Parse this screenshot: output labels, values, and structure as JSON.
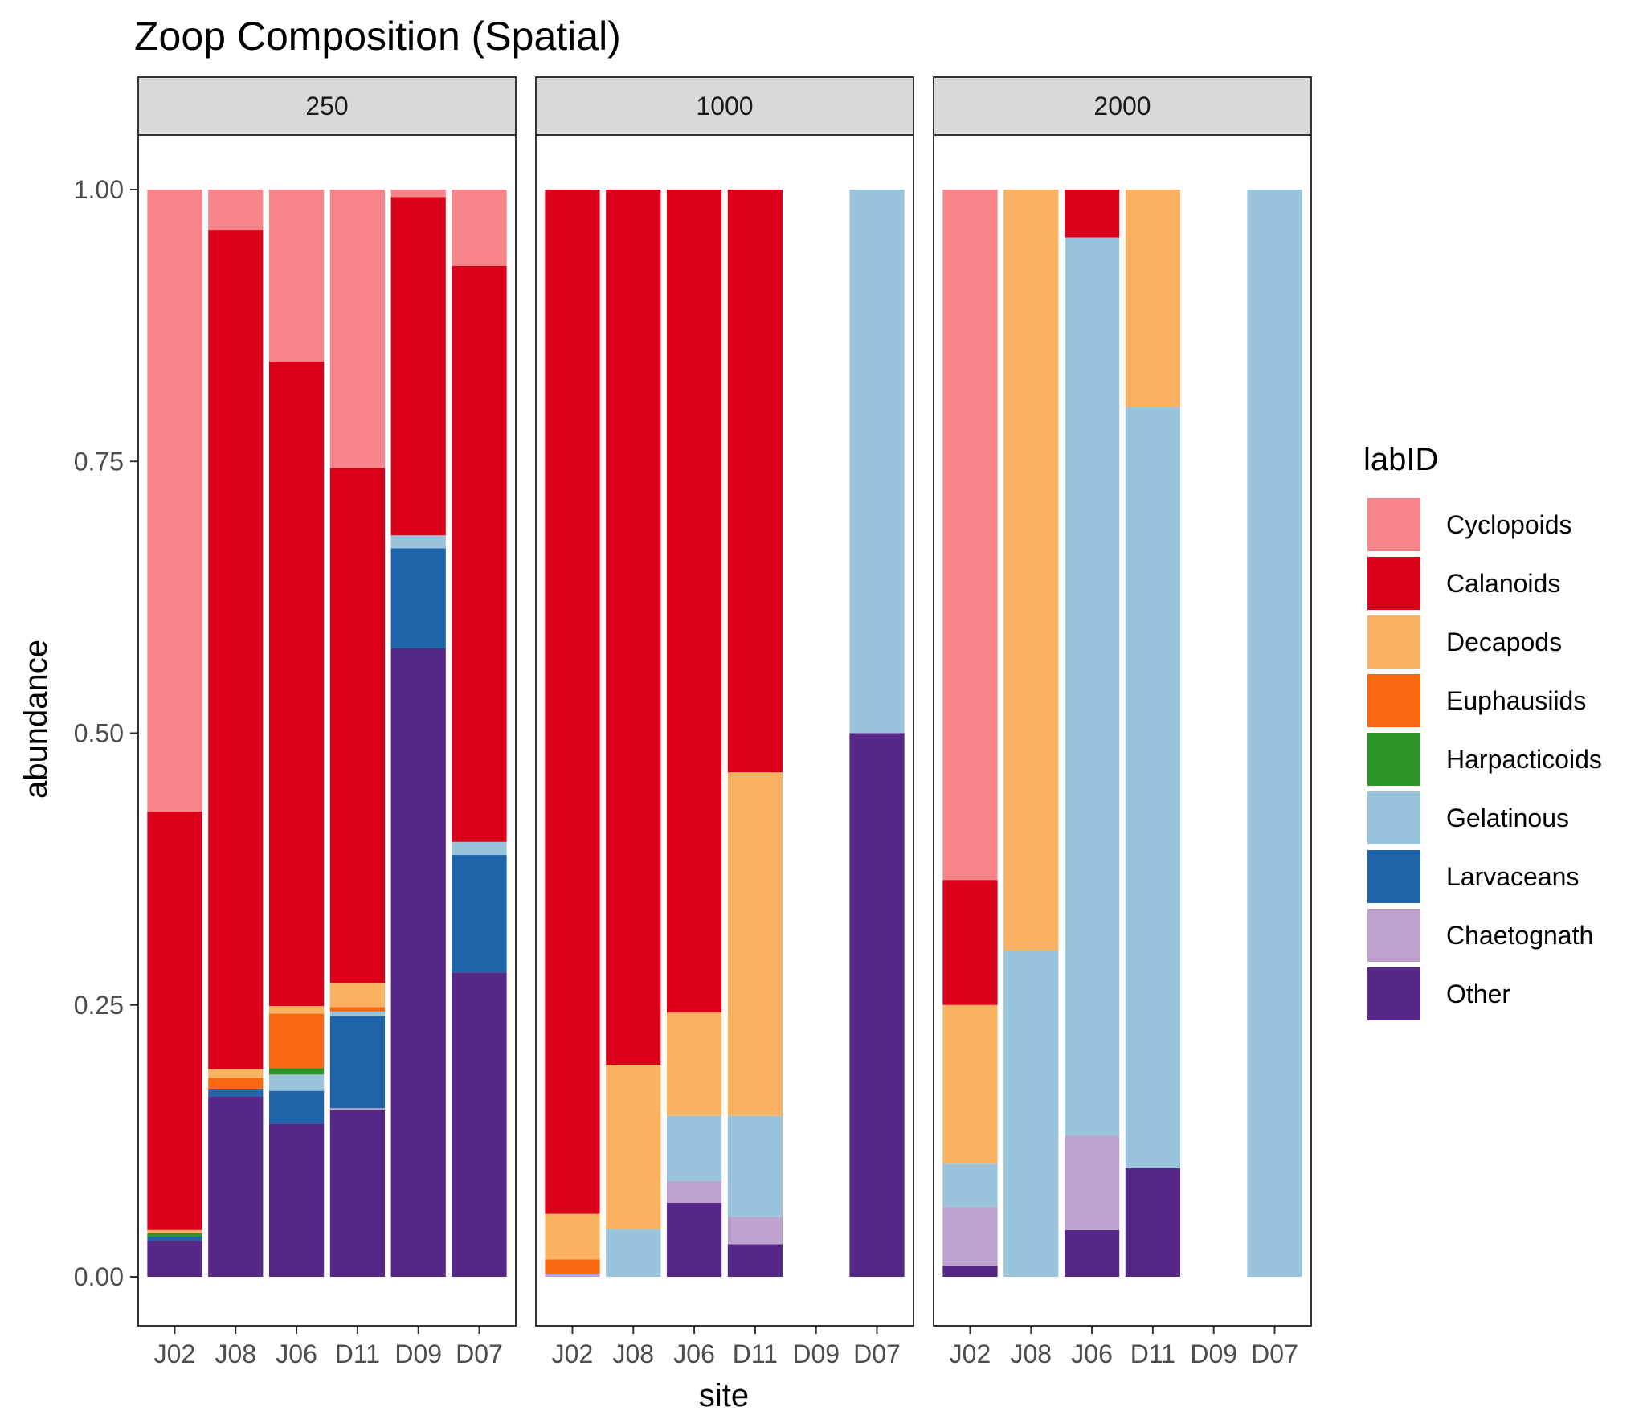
{
  "chart_data": {
    "type": "bar",
    "stacked": true,
    "title": "Zoop Composition (Spatial)",
    "xlabel": "site",
    "ylabel": "abundance",
    "ylim": [
      0,
      1
    ],
    "yticks": [
      "0.00",
      "0.25",
      "0.50",
      "0.75",
      "1.00"
    ],
    "categories": [
      "J02",
      "J08",
      "J06",
      "D11",
      "D09",
      "D07"
    ],
    "facets": [
      "250",
      "1000",
      "2000"
    ],
    "legend": {
      "title": "labID",
      "position": "right",
      "entries": [
        {
          "name": "Cyclopoids",
          "color": "#F8858A"
        },
        {
          "name": "Calanoids",
          "color": "#DA0019"
        },
        {
          "name": "Decapods",
          "color": "#F8B261"
        },
        {
          "name": "Euphausiids",
          "color": "#FA6711"
        },
        {
          "name": "Harpacticoids",
          "color": "#2E9326"
        },
        {
          "name": "Gelatinous",
          "color": "#9AC4DC"
        },
        {
          "name": "Larvaceans",
          "color": "#1F64A8"
        },
        {
          "name": "Chaetognath",
          "color": "#BDA2CE"
        },
        {
          "name": "Other",
          "color": "#562988"
        }
      ]
    },
    "stack_order_bottom_to_top": [
      "Other",
      "Chaetognath",
      "Larvaceans",
      "Gelatinous",
      "Harpacticoids",
      "Euphausiids",
      "Decapods",
      "Calanoids",
      "Cyclopoids"
    ],
    "panels": [
      {
        "facet": "250",
        "bars": {
          "J02": {
            "Other": 0.033,
            "Larvaceans": 0.004,
            "Harpacticoids": 0.003,
            "Decapods": 0.003,
            "Calanoids": 0.385,
            "Cyclopoids": 0.572
          },
          "J08": {
            "Other": 0.166,
            "Larvaceans": 0.007,
            "Euphausiids": 0.01,
            "Decapods": 0.008,
            "Calanoids": 0.772,
            "Cyclopoids": 0.037
          },
          "J06": {
            "Other": 0.141,
            "Larvaceans": 0.03,
            "Gelatinous": 0.015,
            "Harpacticoids": 0.006,
            "Euphausiids": 0.05,
            "Decapods": 0.007,
            "Calanoids": 0.593,
            "Cyclopoids": 0.158
          },
          "D11": {
            "Other": 0.153,
            "Chaetognath": 0.002,
            "Larvaceans": 0.085,
            "Gelatinous": 0.004,
            "Euphausiids": 0.004,
            "Decapods": 0.022,
            "Calanoids": 0.474,
            "Cyclopoids": 0.256
          },
          "D09": {
            "Other": 0.578,
            "Larvaceans": 0.092,
            "Gelatinous": 0.012,
            "Calanoids": 0.311,
            "Cyclopoids": 0.007
          },
          "D07": {
            "Other": 0.28,
            "Larvaceans": 0.108,
            "Gelatinous": 0.012,
            "Calanoids": 0.53,
            "Cyclopoids": 0.07
          }
        }
      },
      {
        "facet": "1000",
        "bars": {
          "J02": {
            "Chaetognath": 0.003,
            "Euphausiids": 0.013,
            "Decapods": 0.042,
            "Calanoids": 0.942
          },
          "J08": {
            "Gelatinous": 0.044,
            "Decapods": 0.151,
            "Calanoids": 0.805
          },
          "J06": {
            "Other": 0.068,
            "Chaetognath": 0.02,
            "Gelatinous": 0.06,
            "Decapods": 0.095,
            "Calanoids": 0.757
          },
          "D11": {
            "Other": 0.03,
            "Chaetognath": 0.025,
            "Gelatinous": 0.093,
            "Decapods": 0.316,
            "Calanoids": 0.536
          },
          "D09": {},
          "D07": {
            "Other": 0.5,
            "Gelatinous": 0.5
          }
        }
      },
      {
        "facet": "2000",
        "bars": {
          "J02": {
            "Other": 0.01,
            "Chaetognath": 0.054,
            "Gelatinous": 0.04,
            "Decapods": 0.146,
            "Calanoids": 0.115,
            "Cyclopoids": 0.635
          },
          "J08": {
            "Gelatinous": 0.3,
            "Decapods": 0.7
          },
          "J06": {
            "Other": 0.043,
            "Chaetognath": 0.087,
            "Gelatinous": 0.826,
            "Calanoids": 0.044
          },
          "D11": {
            "Other": 0.1,
            "Gelatinous": 0.7,
            "Decapods": 0.2
          },
          "D09": {},
          "D07": {
            "Gelatinous": 1.0
          }
        }
      }
    ],
    "grid": false,
    "theme": "bw"
  }
}
